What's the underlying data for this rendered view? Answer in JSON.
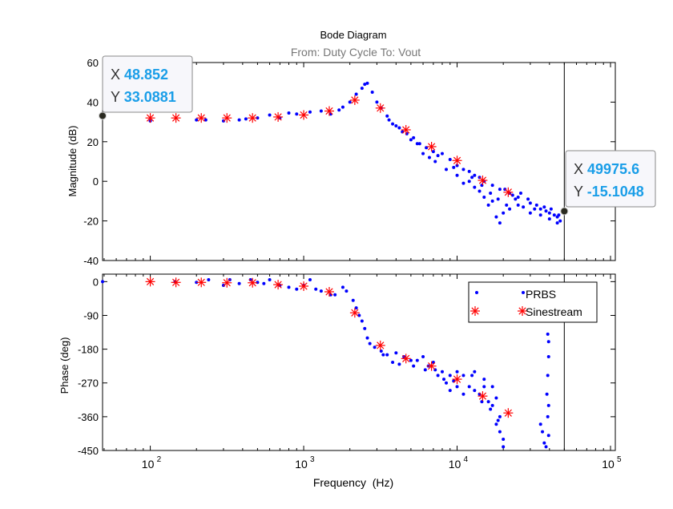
{
  "chart_data": [
    {
      "type": "scatter",
      "title": "Bode Diagram",
      "subtitle": "From: Duty Cycle  To: Vout",
      "xlabel": "",
      "ylabel": "Magnitude (dB)",
      "xscale": "log",
      "xlim": [
        48.852,
        100000
      ],
      "ylim": [
        -40,
        60
      ],
      "yticks": [
        -40,
        -20,
        0,
        20,
        40,
        60
      ],
      "series": [
        {
          "name": "PRBS",
          "color": "#0000ff",
          "marker": "dot",
          "x": [
            48.852,
            100,
            200,
            230,
            300,
            380,
            420,
            500,
            600,
            700,
            800,
            900,
            1100,
            1300,
            1500,
            1700,
            1800,
            2000,
            2200,
            2400,
            2500,
            2600,
            2800,
            3000,
            3200,
            3500,
            3800,
            4200,
            4700,
            5200,
            5700,
            6300,
            7000,
            7500,
            8000,
            9000,
            10000,
            11000,
            12000,
            13000,
            14000,
            15000,
            17000,
            19000,
            22000,
            25000,
            30000,
            35000,
            40000,
            45000,
            49975.6,
            3600,
            4000,
            4400,
            5000,
            5500,
            6000,
            6600,
            7200,
            8500,
            9500,
            10000,
            11000,
            12000,
            13000,
            14000,
            15000,
            16000,
            17000,
            18000,
            19000,
            20000,
            21000,
            22000,
            24000,
            25000,
            27000,
            30000,
            32000,
            35000,
            38000,
            40000,
            43000,
            45000,
            47000,
            12500,
            14500,
            16500,
            18500,
            20500,
            23000,
            26000,
            29000,
            33000,
            37000,
            41000,
            46000
          ],
          "y": [
            33.09,
            30.5,
            31,
            31,
            30.5,
            31,
            31.5,
            32,
            33.5,
            32,
            34.5,
            34,
            35,
            35.5,
            34,
            36,
            37.5,
            40,
            44,
            47,
            49,
            49.5,
            45,
            40,
            37,
            33,
            29,
            27,
            24,
            22,
            19,
            17,
            15,
            13,
            14,
            11,
            8,
            6,
            5,
            3,
            2,
            0,
            -2,
            -4,
            -6,
            -8,
            -11,
            -14,
            -16,
            -18,
            -15.1,
            31,
            28,
            25,
            21,
            19,
            14,
            12,
            10,
            6,
            7,
            3,
            -1,
            0,
            -3,
            -5,
            -8,
            -12,
            -10,
            -18,
            -21,
            -16,
            -12,
            -14,
            -9,
            -12,
            -13,
            -16,
            -14,
            -17,
            -15,
            -19,
            -17,
            -21,
            -20,
            2,
            -2,
            -6,
            -9,
            -4,
            -7,
            -6,
            -9,
            -12,
            -13,
            -14,
            -17
          ]
        },
        {
          "name": "Sinestream",
          "color": "#ff0000",
          "marker": "asterisk",
          "x": [
            100,
            147,
            215,
            316,
            464,
            681,
            1000,
            1468,
            2154,
            3162,
            4642,
            6813,
            10000,
            14678,
            21544
          ],
          "y": [
            32,
            32,
            32,
            32,
            32,
            32.5,
            33.5,
            35.5,
            41,
            37,
            26,
            17.5,
            10.5,
            0.5,
            -5.5
          ]
        }
      ],
      "cursor_x": 49975.6,
      "datatips": [
        {
          "x_label": "X",
          "x_value": "48.852",
          "y_label": "Y",
          "y_value": "33.0881",
          "x": 48.852,
          "y": 33.0881
        },
        {
          "x_label": "X",
          "x_value": "49975.6",
          "y_label": "Y",
          "y_value": "-15.1048",
          "x": 49975.6,
          "y": -15.1048
        }
      ]
    },
    {
      "type": "scatter",
      "xlabel": "Frequency  (Hz)",
      "ylabel": "Phase (deg)",
      "xscale": "log",
      "xlim": [
        48.852,
        100000
      ],
      "ylim": [
        -450,
        20
      ],
      "yticks": [
        -450,
        -360,
        -270,
        -180,
        -90,
        0
      ],
      "xticks": [
        100,
        1000,
        10000,
        100000
      ],
      "xtick_labels": [
        {
          "base": "10",
          "exp": "2"
        },
        {
          "base": "10",
          "exp": "3"
        },
        {
          "base": "10",
          "exp": "4"
        },
        {
          "base": "10",
          "exp": "5"
        }
      ],
      "legend": {
        "position": "top-right",
        "entries": [
          "PRBS",
          "Sinestream"
        ]
      },
      "series": [
        {
          "name": "PRBS",
          "color": "#0000ff",
          "marker": "dot",
          "x": [
            48.852,
            145,
            200,
            240,
            300,
            330,
            380,
            450,
            500,
            550,
            600,
            700,
            800,
            900,
            1000,
            1100,
            1200,
            1300,
            1500,
            1600,
            1800,
            1900,
            2100,
            2200,
            2300,
            2400,
            2500,
            2600,
            2700,
            2900,
            3200,
            3500,
            3800,
            4000,
            4500,
            5000,
            5500,
            6000,
            6500,
            7000,
            7500,
            8000,
            8500,
            9000,
            10000,
            11000,
            12000,
            13000,
            14000,
            15000,
            16000,
            17000,
            18000,
            19000,
            20000,
            20000,
            19000,
            18000,
            17000,
            15000,
            13000,
            11000,
            10000,
            9000,
            3300,
            4200,
            5200,
            6200,
            7200,
            8200,
            9500,
            12500,
            14500,
            16500,
            18500,
            35000,
            36000,
            37000,
            38000,
            38500,
            39000,
            39500,
            39500,
            39000,
            39500,
            39000,
            39500
          ],
          "y": [
            0,
            0,
            -2,
            5,
            -10,
            5,
            -5,
            5,
            -2,
            -5,
            5,
            -10,
            -15,
            -20,
            -10,
            5,
            -20,
            -25,
            -35,
            -35,
            -15,
            -25,
            -50,
            -70,
            -90,
            -105,
            -125,
            -150,
            -165,
            -175,
            -185,
            -195,
            -215,
            -190,
            -200,
            -210,
            -210,
            -200,
            -225,
            -215,
            -250,
            -240,
            -270,
            -250,
            -240,
            -250,
            -280,
            -290,
            -300,
            -280,
            -320,
            -330,
            -380,
            -400,
            -420,
            -440,
            -360,
            -310,
            -280,
            -260,
            -240,
            -300,
            -280,
            -290,
            -195,
            -220,
            -225,
            -235,
            -235,
            -260,
            -265,
            -250,
            -320,
            -340,
            -370,
            -380,
            -400,
            -430,
            -440,
            -300,
            -250,
            -200,
            -160,
            -140,
            -330,
            -360,
            -410
          ]
        },
        {
          "name": "Sinestream",
          "color": "#ff0000",
          "marker": "asterisk",
          "x": [
            100,
            147,
            215,
            316,
            464,
            681,
            1000,
            1468,
            2154,
            3162,
            4642,
            6813,
            10000,
            14678,
            21544
          ],
          "y": [
            0,
            -2,
            -2,
            -3,
            -3,
            -8,
            -12,
            -27,
            -83,
            -170,
            -205,
            -225,
            -260,
            -305,
            -350
          ]
        }
      ],
      "cursor_x": 49975.6
    }
  ]
}
